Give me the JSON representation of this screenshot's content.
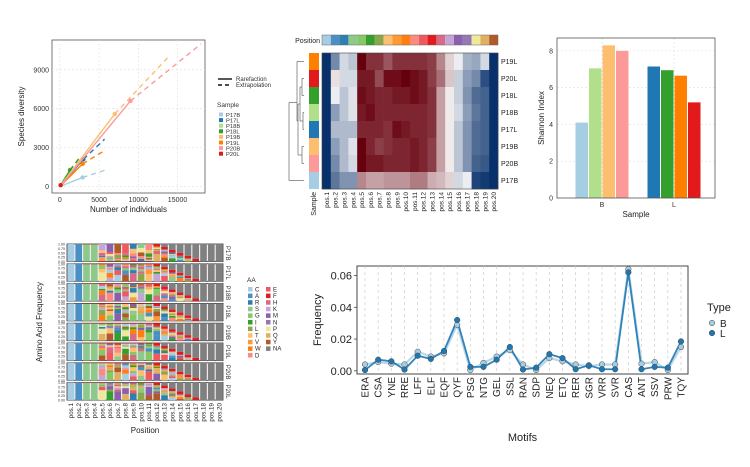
{
  "chart_data": [
    {
      "id": "rarefaction",
      "type": "line",
      "xlabel": "Number of individuals",
      "ylabel": "Species diversity",
      "xlim": [
        -1000,
        18500
      ],
      "ylim": [
        -500,
        11300
      ],
      "xticks": [
        0,
        5000,
        10000,
        15000
      ],
      "yticks": [
        0,
        3000,
        6000,
        9000
      ],
      "grid": true,
      "linetype_legend": {
        "items": [
          "Rarefaction",
          "Extrapolation"
        ]
      },
      "legend_title": "Sample",
      "series": [
        {
          "name": "P17B",
          "color": "#a6cee3",
          "shape": "circle",
          "observed": [
            2900,
            700
          ],
          "end": [
            5700,
            1250
          ]
        },
        {
          "name": "P17L",
          "color": "#1f78b4",
          "shape": "triangle",
          "observed": [
            3000,
            2100
          ],
          "end": [
            5700,
            3650
          ]
        },
        {
          "name": "P18B",
          "color": "#b2df8a",
          "shape": "square",
          "observed": [
            1300,
            1300
          ],
          "end": [
            2700,
            2400
          ]
        },
        {
          "name": "P18L",
          "color": "#33a02c",
          "shape": "plus",
          "observed": [
            1300,
            1250
          ],
          "end": [
            2700,
            2350
          ]
        },
        {
          "name": "P19B",
          "color": "#fdbf6f",
          "shape": "box-x",
          "observed": [
            7000,
            5600
          ],
          "end": [
            14000,
            10100
          ]
        },
        {
          "name": "P19L",
          "color": "#ff7f00",
          "shape": "asterisk",
          "observed": [
            2900,
            1750
          ],
          "end": [
            5800,
            2800
          ]
        },
        {
          "name": "P20B",
          "color": "#fb9a99",
          "shape": "dash",
          "observed": [
            9000,
            6600
          ],
          "end": [
            18000,
            11000
          ]
        },
        {
          "name": "P20L",
          "color": "#e31a1c",
          "shape": "dash",
          "observed": [
            100,
            100
          ],
          "end": [
            200,
            200
          ]
        }
      ]
    },
    {
      "id": "heatmap",
      "type": "heatmap",
      "top_annotation_label": "Position",
      "left_annotation_label": "Sample",
      "columns": [
        "pos.1",
        "pos.2",
        "pos.3",
        "pos.4",
        "pos.5",
        "pos.6",
        "pos.7",
        "pos.8",
        "pos.9",
        "pos.10",
        "pos.11",
        "pos.12",
        "pos.13",
        "pos.14",
        "pos.15",
        "pos.16",
        "pos.17",
        "pos.18",
        "pos.19",
        "pos.20"
      ],
      "rows": [
        "P19L",
        "P20L",
        "P18L",
        "P18B",
        "P17L",
        "P19B",
        "P20B",
        "P17B"
      ],
      "row_annotation_colors": [
        "#ff7f00",
        "#e31a1c",
        "#33a02c",
        "#b2df8a",
        "#1f78b4",
        "#fdbf6f",
        "#fb9a99",
        "#a6cee3"
      ],
      "column_annotation_colors": [
        "#a6cee3",
        "#4a90c4",
        "#2f7eb0",
        "#8dc98a",
        "#86c866",
        "#33a02c",
        "#8aa84a",
        "#fdbf6f",
        "#ff9933",
        "#ff7f0e",
        "#fb8a80",
        "#ef5a60",
        "#e31a1c",
        "#d96a86",
        "#c5a5d6",
        "#8a5fae",
        "#9678b0",
        "#efe79a",
        "#e0b060",
        "#b15928"
      ],
      "value_scale": "z-score (-2 blue to +2 red)",
      "values": [
        [
          -2.0,
          -1.1,
          -0.3,
          -0.5,
          2.0,
          1.6,
          1.6,
          1.3,
          1.6,
          1.6,
          1.6,
          1.6,
          1.5,
          0.9,
          0.3,
          -0.1,
          -0.7,
          -0.8,
          -0.3,
          -2.0
        ],
        [
          -2.0,
          0.2,
          -0.3,
          -0.3,
          1.8,
          1.8,
          1.4,
          1.9,
          1.9,
          2.0,
          1.9,
          1.8,
          1.5,
          1.1,
          0.4,
          -0.4,
          -0.9,
          -1.1,
          -1.7,
          -2.0
        ],
        [
          -2.0,
          -0.1,
          -0.5,
          -0.2,
          1.9,
          1.8,
          1.7,
          1.7,
          1.8,
          1.8,
          1.9,
          1.8,
          1.6,
          0.7,
          0.1,
          -0.4,
          -1.0,
          -1.4,
          -1.5,
          -2.0
        ],
        [
          -2.0,
          -0.9,
          -0.5,
          -0.2,
          1.8,
          1.9,
          1.7,
          1.7,
          1.7,
          1.7,
          1.7,
          1.7,
          1.6,
          0.7,
          0.1,
          -0.3,
          -0.9,
          -1.3,
          -1.5,
          -2.0
        ],
        [
          -2.0,
          -0.6,
          -0.6,
          -0.6,
          1.7,
          1.7,
          1.7,
          1.6,
          1.9,
          1.8,
          1.7,
          1.7,
          1.6,
          0.7,
          0.1,
          -0.5,
          -1.0,
          -1.4,
          -1.5,
          -2.0
        ],
        [
          -2.0,
          -0.9,
          -0.6,
          -0.2,
          2.0,
          1.7,
          1.5,
          1.6,
          1.7,
          1.7,
          1.8,
          1.7,
          1.5,
          0.7,
          0.1,
          -0.5,
          -1.0,
          -1.4,
          -1.5,
          -2.0
        ],
        [
          -2.0,
          -1.1,
          -0.6,
          -0.3,
          2.0,
          1.8,
          1.8,
          1.7,
          1.7,
          1.7,
          1.8,
          1.7,
          1.5,
          0.7,
          0.1,
          -0.5,
          -1.0,
          -1.5,
          -1.6,
          -2.0
        ],
        [
          -2.0,
          -1.3,
          -1.0,
          -1.0,
          0.9,
          0.7,
          0.7,
          0.8,
          0.8,
          0.8,
          1.0,
          1.0,
          0.6,
          0.5,
          0.3,
          -0.3,
          -0.1,
          -1.8,
          -1.9,
          -2.0
        ]
      ]
    },
    {
      "id": "shannon",
      "type": "bar",
      "xlabel": "Sample",
      "ylabel": "Shannon Index",
      "categories": [
        "B",
        "L"
      ],
      "ylim": [
        0,
        8.7
      ],
      "yticks": [
        0,
        2,
        4,
        6,
        8
      ],
      "grid": true,
      "series": [
        {
          "group": "B",
          "name": "P17B",
          "value": 4.1,
          "color": "#a6cee3"
        },
        {
          "group": "B",
          "name": "P18B",
          "value": 7.05,
          "color": "#b2df8a"
        },
        {
          "group": "B",
          "name": "P19B",
          "value": 8.3,
          "color": "#fdbf6f"
        },
        {
          "group": "B",
          "name": "P20B",
          "value": 8.0,
          "color": "#fb9a99"
        },
        {
          "group": "L",
          "name": "P17L",
          "value": 7.15,
          "color": "#1f78b4"
        },
        {
          "group": "L",
          "name": "P18L",
          "value": 6.95,
          "color": "#33a02c"
        },
        {
          "group": "L",
          "name": "P19L",
          "value": 6.65,
          "color": "#ff7f00"
        },
        {
          "group": "L",
          "name": "P20L",
          "value": 5.2,
          "color": "#e31a1c"
        }
      ]
    },
    {
      "id": "aa-frequency",
      "type": "bar",
      "stacked": true,
      "xlabel": "Position",
      "ylabel": "Amino Acid Frequency",
      "categories": [
        "pos.1",
        "pos.2",
        "pos.3",
        "pos.4",
        "pos.5",
        "pos.6",
        "pos.7",
        "pos.8",
        "pos.9",
        "pos.10",
        "pos.11",
        "pos.12",
        "pos.13",
        "pos.14",
        "pos.15",
        "pos.16",
        "pos.17",
        "pos.18",
        "pos.19",
        "pos.20"
      ],
      "yticks": [
        "0.00",
        "0.25",
        "0.50",
        "0.75",
        "1.00"
      ],
      "facets": [
        "P17B",
        "P17L",
        "P18B",
        "P18L",
        "P19B",
        "P19L",
        "P20B",
        "P20L"
      ],
      "legend_title": "AA",
      "legend": [
        {
          "aa": "C",
          "color": "#a6cee3"
        },
        {
          "aa": "A",
          "color": "#4a90c4"
        },
        {
          "aa": "R",
          "color": "#2f7eb0"
        },
        {
          "aa": "S",
          "color": "#8dc98a"
        },
        {
          "aa": "G",
          "color": "#86c866"
        },
        {
          "aa": "I",
          "color": "#33a02c"
        },
        {
          "aa": "L",
          "color": "#8aa84a"
        },
        {
          "aa": "T",
          "color": "#fdbf6f"
        },
        {
          "aa": "V",
          "color": "#ff9933"
        },
        {
          "aa": "W",
          "color": "#ff7f0e"
        },
        {
          "aa": "D",
          "color": "#fb8a80"
        },
        {
          "aa": "E",
          "color": "#ef5a60"
        },
        {
          "aa": "F",
          "color": "#e31a1c"
        },
        {
          "aa": "H",
          "color": "#d96a86"
        },
        {
          "aa": "K",
          "color": "#c5a5d6"
        },
        {
          "aa": "M",
          "color": "#8a5fae"
        },
        {
          "aa": "N",
          "color": "#9678b0"
        },
        {
          "aa": "P",
          "color": "#efe79a"
        },
        {
          "aa": "Q",
          "color": "#e0b060"
        },
        {
          "aa": "Y",
          "color": "#b15928"
        },
        {
          "aa": "NA",
          "color": "#808080"
        }
      ]
    },
    {
      "id": "motifs",
      "type": "line",
      "xlabel": "Motifs",
      "ylabel": "Frequency",
      "ylim": [
        -0.002,
        0.066
      ],
      "yticks": [
        "0.00",
        "0.02",
        "0.04",
        "0.06"
      ],
      "grid": true,
      "legend_title": "Type",
      "categories": [
        "ERA",
        "CSA",
        "YNE",
        "RRE",
        "LFF",
        "ELF",
        "EQF",
        "QYF",
        "PSG",
        "NTG",
        "GEL",
        "SSL",
        "RAN",
        "SDP",
        "NEQ",
        "ETQ",
        "RER",
        "SGR",
        "VRR",
        "SVR",
        "CAS",
        "ANT",
        "SSV",
        "PRW",
        "TQY"
      ],
      "series": [
        {
          "name": "B",
          "color": "#a6cee3",
          "values": [
            0.004,
            0.0055,
            0.0045,
            0.004,
            0.012,
            0.009,
            0.011,
            0.029,
            0.0005,
            0.005,
            0.009,
            0.013,
            0.004,
            0.0005,
            0.008,
            0.006,
            0.004,
            0.003,
            0.004,
            0.004,
            0.064,
            0.0045,
            0.0055,
            0.0005,
            0.015
          ]
        },
        {
          "name": "L",
          "color": "#1f78b4",
          "values": [
            0.0005,
            0.007,
            0.006,
            0.0008,
            0.0095,
            0.0075,
            0.0125,
            0.032,
            0.0025,
            0.0025,
            0.007,
            0.015,
            0.0008,
            0.002,
            0.0105,
            0.008,
            0.001,
            0.0035,
            0.001,
            0.001,
            0.062,
            0.001,
            0.0025,
            0.002,
            0.0185
          ]
        }
      ]
    }
  ]
}
